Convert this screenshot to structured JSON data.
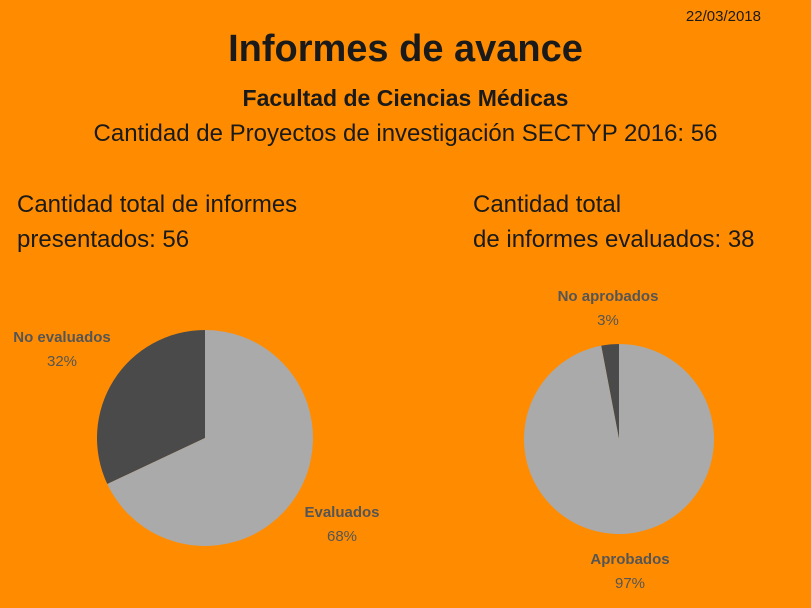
{
  "header": {
    "date": "22/03/2018",
    "title": "Informes de avance",
    "subtitle": "Facultad de Ciencias Médicas",
    "projects_line": "Cantidad de Proyectos de investigación SECTYP 2016: 56"
  },
  "left_stat": {
    "line1": "Cantidad total de informes",
    "line2": "presentados: 56"
  },
  "right_stat": {
    "line1": "Cantidad total",
    "line2": "de informes evaluados: 38"
  },
  "colors": {
    "background": "#FF8C00",
    "light_slice": "#AAAAAA",
    "dark_slice": "#4A4A4A",
    "label": "#555555"
  },
  "chart_data": [
    {
      "type": "pie",
      "slices": [
        {
          "label": "No evaluados",
          "percent_label": "32%",
          "value": 32,
          "color": "#4A4A4A"
        },
        {
          "label": "Evaluados",
          "percent_label": "68%",
          "value": 68,
          "color": "#AAAAAA"
        }
      ]
    },
    {
      "type": "pie",
      "slices": [
        {
          "label": "No aprobados",
          "percent_label": "3%",
          "value": 3,
          "color": "#4A4A4A"
        },
        {
          "label": "Aprobados",
          "percent_label": "97%",
          "value": 97,
          "color": "#AAAAAA"
        }
      ]
    }
  ]
}
